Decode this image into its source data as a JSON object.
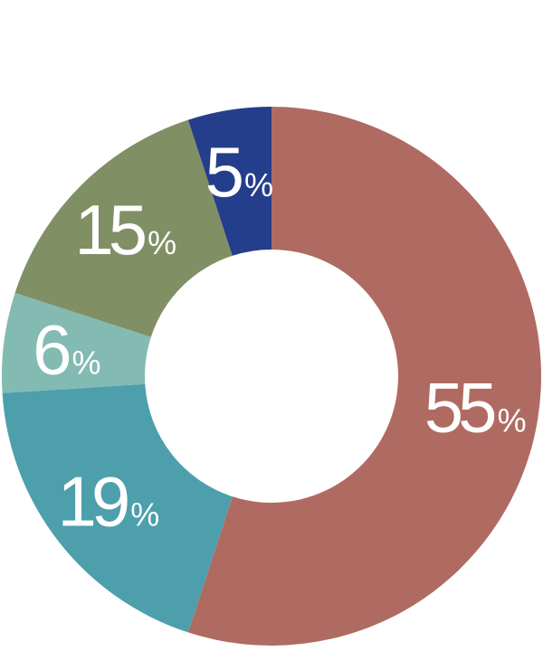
{
  "chart_data": {
    "type": "pie",
    "style": "donut",
    "title": "",
    "unit": "%",
    "slices": [
      {
        "label": "55",
        "value": 55,
        "color": "#AF6B62"
      },
      {
        "label": "19",
        "value": 19,
        "color": "#4D9FAC"
      },
      {
        "label": "6",
        "value": 6,
        "color": "#83BAB2"
      },
      {
        "label": "15",
        "value": 15,
        "color": "#818F64"
      },
      {
        "label": "5",
        "value": 5,
        "color": "#243E8B"
      }
    ]
  }
}
